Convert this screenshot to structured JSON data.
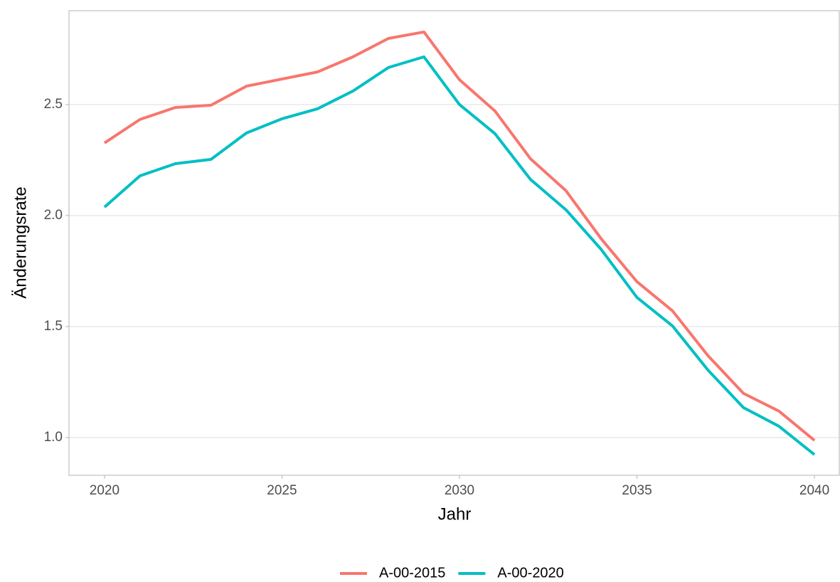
{
  "chart_data": {
    "type": "line",
    "xlabel": "Jahr",
    "ylabel": "Änderungsrate",
    "x": [
      2020,
      2021,
      2022,
      2023,
      2024,
      2025,
      2026,
      2027,
      2028,
      2029,
      2030,
      2031,
      2032,
      2033,
      2034,
      2035,
      2036,
      2037,
      2038,
      2039,
      2040
    ],
    "series": [
      {
        "name": "A-00-2015",
        "color": "#f8766d",
        "values": [
          2.327,
          2.433,
          2.487,
          2.497,
          2.583,
          2.615,
          2.647,
          2.715,
          2.798,
          2.827,
          2.612,
          2.471,
          2.256,
          2.112,
          1.894,
          1.702,
          1.571,
          1.369,
          1.199,
          1.119,
          0.987
        ]
      },
      {
        "name": "A-00-2020",
        "color": "#00bfc4",
        "values": [
          2.038,
          2.179,
          2.234,
          2.253,
          2.372,
          2.436,
          2.481,
          2.561,
          2.667,
          2.715,
          2.5,
          2.369,
          2.163,
          2.026,
          1.846,
          1.631,
          1.503,
          1.304,
          1.135,
          1.051,
          0.923
        ]
      }
    ],
    "xlim": [
      2019,
      2040.7
    ],
    "xticks": [
      2020,
      2025,
      2030,
      2035,
      2040
    ],
    "ylim": [
      0.83,
      2.923
    ],
    "yticks": [
      {
        "value": 1,
        "label": "1.0"
      },
      1.5,
      {
        "value": 2,
        "label": "2.0"
      },
      2.5
    ],
    "grid": true,
    "legend": "bottom"
  }
}
